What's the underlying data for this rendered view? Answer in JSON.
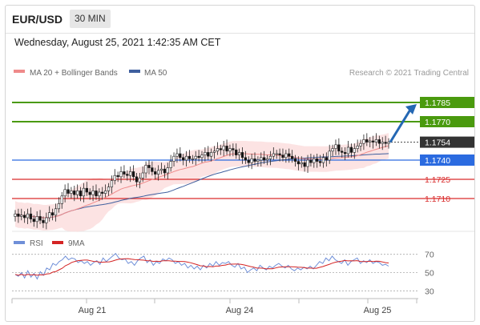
{
  "header": {
    "symbol": "EUR/USD",
    "timeframe": "30 MIN",
    "timestamp": "Wednesday, August 25, 2021 1:42:35 AM CET"
  },
  "legend": {
    "ma20_label": "MA 20 + Bollinger Bands",
    "ma50_label": "MA 50",
    "copyright": "Research © 2021 Trading Central",
    "rsi_label": "RSI",
    "rsi_ma_label": "9MA"
  },
  "colors": {
    "target": "#4a9a0e",
    "last_price": "#333333",
    "pivot": "#2b6be0",
    "support": "#d92b2b",
    "ma20": "#ef8a8a",
    "ma50": "#3f5f9e",
    "rsi": "#6f8fd8",
    "rsi_ma": "#d42424",
    "bull": "#ffffff",
    "bear": "#111111"
  },
  "chart_data": [
    {
      "type": "candlestick",
      "title": "EUR/USD 30 MIN",
      "x_tick_labels": [
        "Aug 21",
        "Aug 24",
        "Aug 25"
      ],
      "y_range": [
        1.1685,
        1.18
      ],
      "levels": [
        {
          "label": "1.1785",
          "value": 1.1785,
          "kind": "target"
        },
        {
          "label": "1.1770",
          "value": 1.177,
          "kind": "target"
        },
        {
          "label": "1.1754",
          "value": 1.1754,
          "kind": "last"
        },
        {
          "label": "1.1740",
          "value": 1.174,
          "kind": "pivot"
        },
        {
          "label": "1.1725",
          "value": 1.1725,
          "kind": "support"
        },
        {
          "label": "1.1710",
          "value": 1.171,
          "kind": "support"
        }
      ],
      "close": [
        1.1698,
        1.1696,
        1.1697,
        1.1695,
        1.1698,
        1.1694,
        1.1692,
        1.1696,
        1.1693,
        1.1691,
        1.1695,
        1.1699,
        1.1697,
        1.1702,
        1.1706,
        1.1712,
        1.1717,
        1.1714,
        1.1716,
        1.1713,
        1.1716,
        1.1712,
        1.1718,
        1.1715,
        1.1713,
        1.1716,
        1.1712,
        1.1715,
        1.1714,
        1.1716,
        1.1719,
        1.1724,
        1.1728,
        1.1727,
        1.1731,
        1.1729,
        1.1728,
        1.1731,
        1.1727,
        1.1723,
        1.1726,
        1.173,
        1.1736,
        1.1734,
        1.1731,
        1.1729,
        1.1732,
        1.1733,
        1.173,
        1.1734,
        1.1739,
        1.1743,
        1.1745,
        1.1742,
        1.174,
        1.1743,
        1.1741,
        1.1741,
        1.1743,
        1.1742,
        1.1744,
        1.1746,
        1.1743,
        1.1746,
        1.1747,
        1.1749,
        1.1748,
        1.1751,
        1.1747,
        1.1749,
        1.1748,
        1.1744,
        1.1746,
        1.1742,
        1.174,
        1.1738,
        1.1741,
        1.1739,
        1.174,
        1.1742,
        1.174,
        1.1741,
        1.1743,
        1.1745,
        1.1745,
        1.1744,
        1.1742,
        1.1745,
        1.1743,
        1.1741,
        1.1739,
        1.1737,
        1.1738,
        1.1735,
        1.174,
        1.1738,
        1.1741,
        1.1739,
        1.1738,
        1.1742,
        1.174,
        1.1747,
        1.1749,
        1.1752,
        1.1747,
        1.1746,
        1.1745,
        1.175,
        1.1746,
        1.1749,
        1.1751,
        1.1753,
        1.1756,
        1.1754,
        1.1755,
        1.1754,
        1.1756,
        1.1753,
        1.1754,
        1.1753,
        1.1754
      ],
      "rsi": [
        48,
        46,
        50,
        44,
        52,
        45,
        49,
        43,
        51,
        47,
        55,
        53,
        60,
        58,
        62,
        64,
        68,
        64,
        66,
        65,
        61,
        63,
        60,
        62,
        58,
        61,
        63,
        59,
        66,
        62,
        65,
        68,
        71,
        66,
        64,
        65,
        60,
        62,
        58,
        63,
        66,
        68,
        61,
        64,
        58,
        62,
        60,
        65,
        63,
        66,
        64,
        60,
        62,
        58,
        60,
        55,
        58,
        54,
        57,
        53,
        58,
        55,
        60,
        57,
        62,
        58,
        61,
        60,
        62,
        58,
        56,
        60,
        54,
        56,
        50,
        53,
        55,
        52,
        58,
        55,
        53,
        57,
        55,
        58,
        60,
        57,
        55,
        58,
        54,
        52,
        55,
        53,
        56,
        54,
        57,
        54,
        58,
        62,
        60,
        66,
        63,
        68,
        64,
        62,
        60,
        64,
        58,
        62,
        64,
        66,
        60,
        63,
        61,
        64,
        60,
        62,
        61,
        58,
        59,
        57
      ]
    }
  ]
}
